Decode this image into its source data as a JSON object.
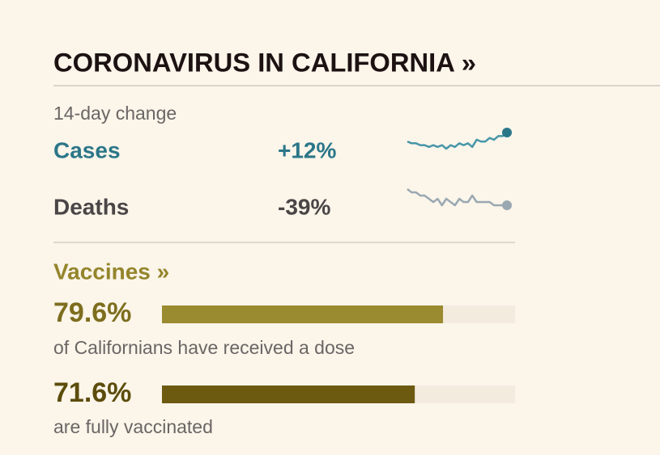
{
  "header": {
    "title": "CORONAVIRUS IN CALIFORNIA »"
  },
  "change": {
    "label": "14-day change",
    "rows": [
      {
        "name": "Cases",
        "value": "+12%",
        "color": "#2b7689",
        "line_color": "#4796a8",
        "trend": [
          12,
          11,
          11,
          10,
          10,
          9,
          10,
          9,
          10,
          8,
          10,
          9,
          11,
          10,
          11,
          9,
          13,
          12,
          12,
          14,
          13,
          15,
          15,
          17
        ]
      },
      {
        "name": "Deaths",
        "value": "-39%",
        "color": "#4a4646",
        "line_color": "#9aa8b2",
        "trend": [
          17,
          16,
          16,
          15,
          15,
          14,
          13,
          14,
          12,
          14,
          13,
          12,
          14,
          13,
          13,
          15,
          13,
          13,
          13,
          13,
          12,
          12,
          12,
          12
        ]
      }
    ]
  },
  "vaccines": {
    "title": "Vaccines »",
    "title_color": "#94852c",
    "xlim": [
      0,
      100
    ],
    "bars": [
      {
        "value": 79.6,
        "label": "79.6%",
        "caption": "of Californians have received a dose",
        "color": "#9a8a30",
        "text_color": "#7d6e1e"
      },
      {
        "value": 71.6,
        "label": "71.6%",
        "caption": "are fully vaccinated",
        "color": "#6c5a10",
        "text_color": "#5c4c0c"
      }
    ]
  }
}
